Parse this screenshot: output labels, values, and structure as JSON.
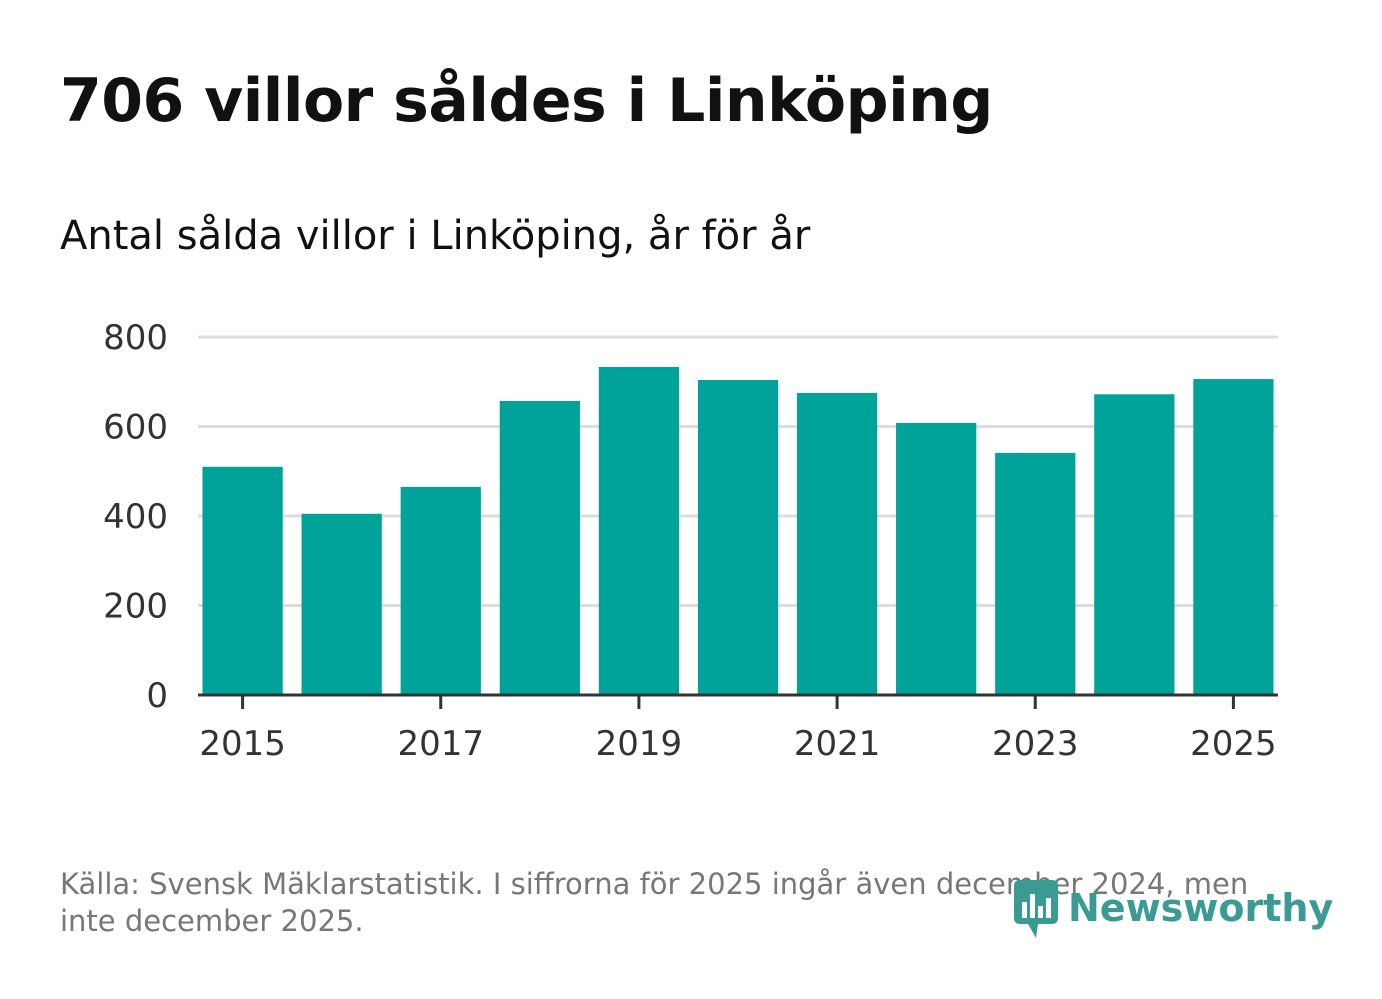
{
  "headline": "706 villor såldes i Linköping",
  "chart_data": {
    "type": "bar",
    "title": "Antal sålda villor i Linköping, år för år",
    "xlabel": "",
    "ylabel": "",
    "categories": [
      "2015",
      "2016",
      "2017",
      "2018",
      "2019",
      "2020",
      "2021",
      "2022",
      "2023",
      "2024",
      "2025"
    ],
    "values": [
      510,
      405,
      465,
      657,
      733,
      704,
      675,
      608,
      541,
      672,
      706
    ],
    "ylim": [
      0,
      800
    ],
    "yticks": [
      "0",
      "200",
      "400",
      "600",
      "800"
    ],
    "xticks": [
      "2015",
      "2017",
      "2019",
      "2021",
      "2023",
      "2025"
    ],
    "bar_color": "#00a39a",
    "grid": true,
    "legend": "none"
  },
  "source": "Källa: Svensk Mäklarstatistik. I siffrorna för 2025 ingår även december 2024, men inte december 2025.",
  "logo": {
    "text": "Newsworthy",
    "icon": "newsworthy-logo-icon",
    "color": "#3a9a94"
  }
}
